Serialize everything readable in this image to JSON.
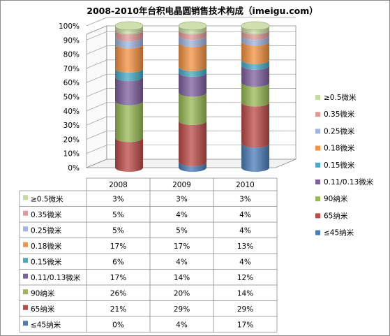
{
  "chart_data": {
    "type": "bar",
    "stacked": "percent",
    "shape": "3d-cylinder",
    "title": "2008-2010年台积电晶圆销售技术构成（imeigu.com）",
    "categories": [
      "2008",
      "2009",
      "2010"
    ],
    "ylim": [
      0,
      100
    ],
    "y_ticks": [
      "0%",
      "10%",
      "20%",
      "30%",
      "40%",
      "50%",
      "60%",
      "70%",
      "80%",
      "90%",
      "100%"
    ],
    "legend_position": "right",
    "data_table": true,
    "series": [
      {
        "name": "≤45纳米",
        "values": [
          0,
          4,
          17
        ],
        "labels": [
          "0%",
          "4%",
          "17%"
        ],
        "color": "#4a7ebb"
      },
      {
        "name": "65纳米",
        "values": [
          21,
          29,
          29
        ],
        "labels": [
          "21%",
          "29%",
          "29%"
        ],
        "color": "#be4b48"
      },
      {
        "name": "90纳米",
        "values": [
          26,
          20,
          14
        ],
        "labels": [
          "26%",
          "20%",
          "14%"
        ],
        "color": "#98b954"
      },
      {
        "name": "0.11/0.13微米",
        "values": [
          17,
          14,
          12
        ],
        "labels": [
          "17%",
          "14%",
          "12%"
        ],
        "color": "#7d60a0"
      },
      {
        "name": "0.15微米",
        "values": [
          6,
          4,
          4
        ],
        "labels": [
          "6%",
          "4%",
          "4%"
        ],
        "color": "#46aac5"
      },
      {
        "name": "0.18微米",
        "values": [
          17,
          17,
          13
        ],
        "labels": [
          "17%",
          "17%",
          "13%"
        ],
        "color": "#f69240"
      },
      {
        "name": "0.25微米",
        "values": [
          5,
          5,
          4
        ],
        "labels": [
          "5%",
          "5%",
          "4%"
        ],
        "color": "#9eb6e0"
      },
      {
        "name": "0.35微米",
        "values": [
          5,
          4,
          4
        ],
        "labels": [
          "5%",
          "4%",
          "4%"
        ],
        "color": "#e29a98"
      },
      {
        "name": "≥0.5微米",
        "values": [
          3,
          3,
          3
        ],
        "labels": [
          "3%",
          "3%",
          "3%"
        ],
        "color": "#c5dba0"
      }
    ]
  }
}
